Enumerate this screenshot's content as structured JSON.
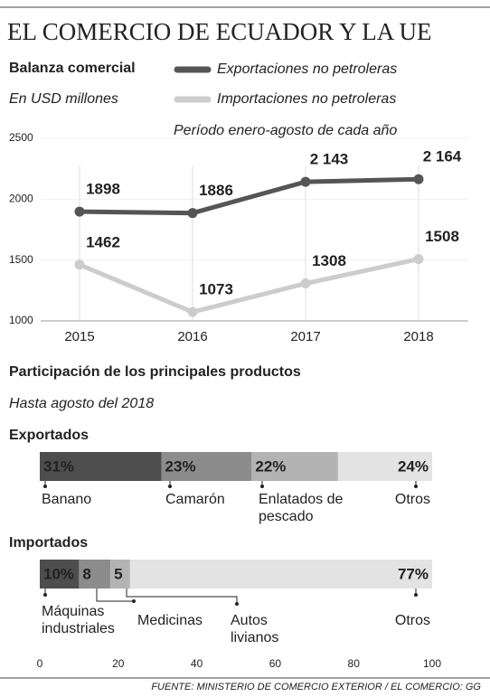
{
  "title": "EL COMERCIO DE ECUADOR Y LA UE",
  "source": "FUENTE: MINISTERIO DE COMERCIO EXTERIOR / EL COMERCIO: GG",
  "chart_data": [
    {
      "type": "line",
      "title": "Balanza comercial",
      "subtitle": "En USD millones",
      "annotation": "Período enero-agosto de cada año",
      "categories": [
        "2015",
        "2016",
        "2017",
        "2018"
      ],
      "series": [
        {
          "name": "Exportaciones no petroleras",
          "color": "#555555",
          "values": [
            1898,
            1886,
            2143,
            2164
          ],
          "value_labels": [
            "1898",
            "1886",
            "2 143",
            "2 164"
          ]
        },
        {
          "name": "Importaciones no petroleras",
          "color": "#cccccc",
          "values": [
            1462,
            1073,
            1308,
            1508
          ],
          "value_labels": [
            "1462",
            "1073",
            "1308",
            "1508"
          ]
        }
      ],
      "ylim": [
        1000,
        2500
      ],
      "yticks": [
        1000,
        1500,
        2000,
        2500
      ]
    },
    {
      "type": "stacked-bar",
      "title": "Participación de los principales productos",
      "subtitle": "Hasta agosto del 2018",
      "groups": [
        {
          "name": "Exportados",
          "names": [
            "Banano",
            "Camarón",
            "Enlatados de pescado",
            "Otros"
          ],
          "values": [
            31,
            23,
            22,
            24
          ],
          "value_labels": [
            "31%",
            "23%",
            "22%",
            "24%"
          ],
          "colors": [
            "#4d4d4d",
            "#8c8c8c",
            "#b3b3b3",
            "#e3e3e3"
          ]
        },
        {
          "name": "Importados",
          "names": [
            "Máquinas industriales",
            "Medicinas",
            "Autos livianos",
            "Otros"
          ],
          "values": [
            10,
            8,
            5,
            77
          ],
          "value_labels": [
            "10%",
            "8",
            "5",
            "77%"
          ],
          "colors": [
            "#4d4d4d",
            "#8c8c8c",
            "#b3b3b3",
            "#e3e3e3"
          ]
        }
      ],
      "xlim": [
        0,
        100
      ],
      "xticks": [
        0,
        20,
        40,
        60,
        80,
        100
      ]
    }
  ]
}
